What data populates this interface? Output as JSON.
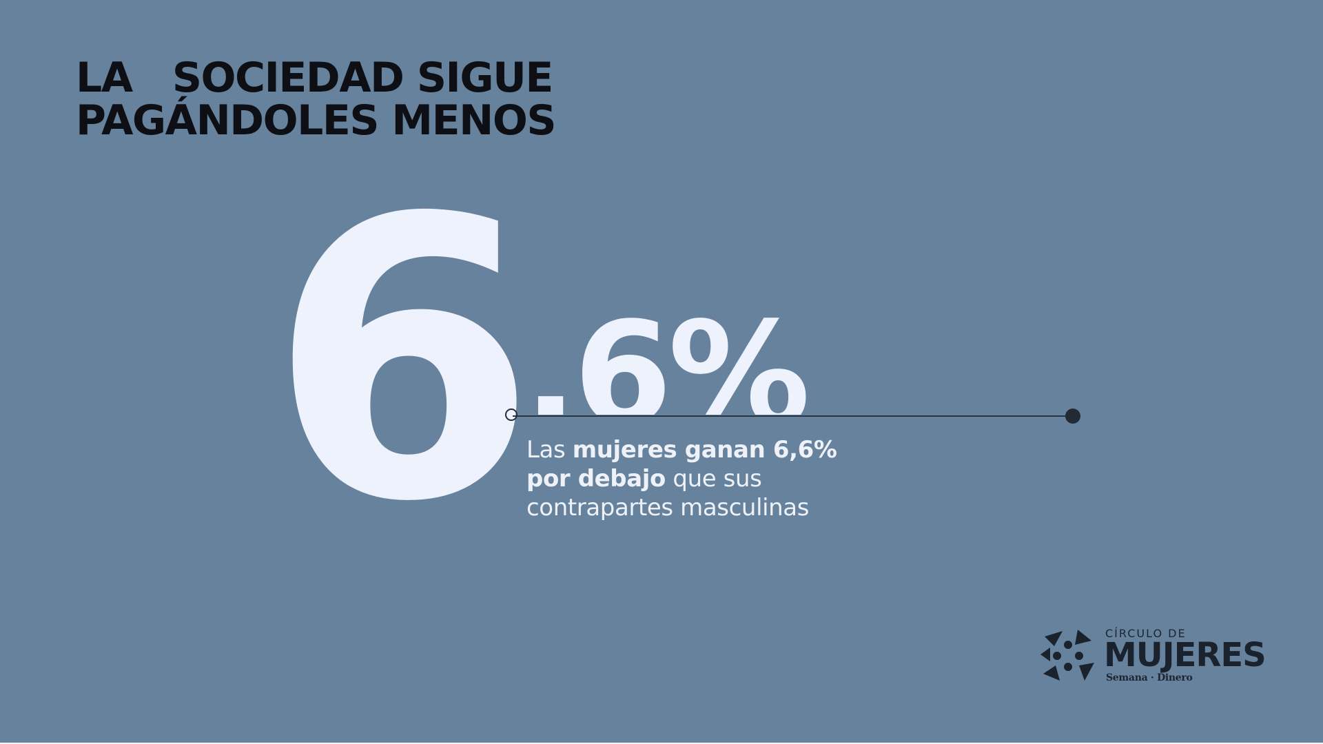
{
  "slide": {
    "title_lines": [
      "LA   SOCIEDAD SIGUE",
      "PAGÁNDOLES MENOS"
    ],
    "big_number": "6",
    "decimal_text": ".6%",
    "caption": {
      "prefix": "Las ",
      "bold1": "mujeres ganan 6,6%",
      "bold2": "por debajo",
      "suffix": " que sus",
      "line3": "contrapartes masculinas"
    },
    "logo": {
      "small": "CÍRCULO DE",
      "main": "MUJERES",
      "sub": "Semana · Dinero"
    }
  },
  "colors": {
    "background": "#66829c",
    "title": "#0d0f14",
    "number": "#edf2fc",
    "line": "#2b3541",
    "logo": "#1a222d"
  },
  "icons": {
    "logo_mark": "circulo-de-mujeres-logo-icon"
  }
}
